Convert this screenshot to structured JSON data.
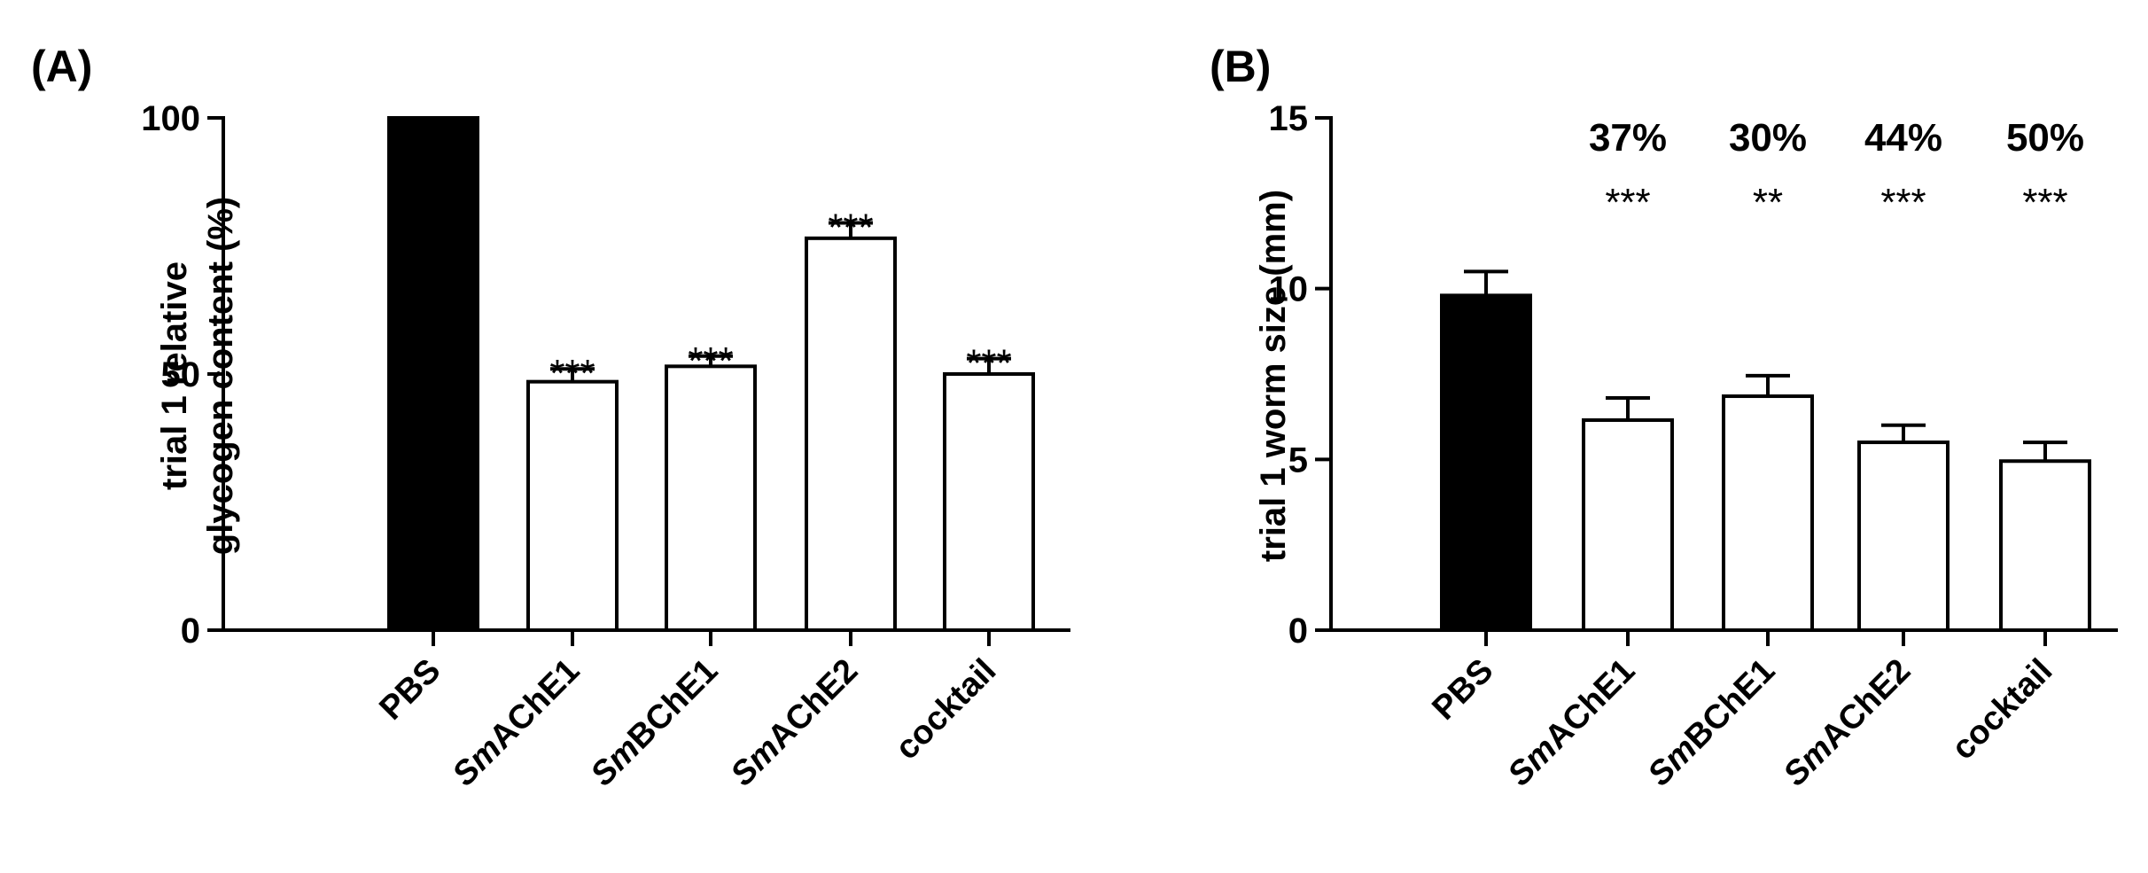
{
  "chart_data": [
    {
      "type": "bar",
      "panel": "(A)",
      "ylabel_lines": [
        "trial 1 relative",
        "glycogen content (%)"
      ],
      "ylim": [
        0,
        100
      ],
      "yticks": [
        0,
        50,
        100
      ],
      "categories": [
        {
          "prefix": "",
          "rest": "PBS"
        },
        {
          "prefix": "Sm",
          "rest": "AChE1"
        },
        {
          "prefix": "Sm",
          "rest": "BChE1"
        },
        {
          "prefix": "Sm",
          "rest": "AChE2"
        },
        {
          "prefix": "",
          "rest": "cocktail"
        }
      ],
      "values": [
        100,
        48.5,
        51.5,
        76.5,
        50
      ],
      "errors": [
        0,
        2.5,
        2,
        3,
        3
      ],
      "fills": [
        "#000000",
        "#ffffff",
        "#ffffff",
        "#ffffff",
        "#ffffff"
      ],
      "significance": [
        "",
        "***",
        "***",
        "***",
        "***"
      ],
      "percent_reduction": [
        "",
        "",
        "",
        "",
        ""
      ]
    },
    {
      "type": "bar",
      "panel": "(B)",
      "ylabel_lines": [
        "trial 1 worm size (mm)"
      ],
      "ylim": [
        0,
        15
      ],
      "yticks": [
        0,
        5,
        10,
        15
      ],
      "categories": [
        {
          "prefix": "",
          "rest": "PBS"
        },
        {
          "prefix": "Sm",
          "rest": "AChE1"
        },
        {
          "prefix": "Sm",
          "rest": "BChE1"
        },
        {
          "prefix": "Sm",
          "rest": "AChE2"
        },
        {
          "prefix": "",
          "rest": "cocktail"
        }
      ],
      "values": [
        9.8,
        6.15,
        6.85,
        5.5,
        4.95
      ],
      "errors": [
        0.7,
        0.65,
        0.6,
        0.5,
        0.55
      ],
      "fills": [
        "#000000",
        "#ffffff",
        "#ffffff",
        "#ffffff",
        "#ffffff"
      ],
      "significance": [
        "",
        "***",
        "**",
        "***",
        "***"
      ],
      "percent_reduction": [
        "",
        "37%",
        "30%",
        "44%",
        "50%"
      ]
    }
  ]
}
